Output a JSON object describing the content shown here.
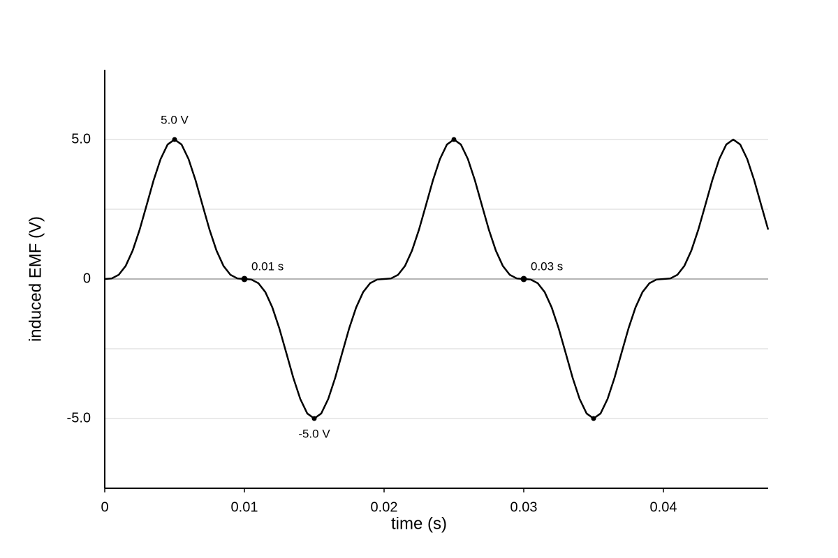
{
  "chart_data": {
    "type": "line",
    "x_label": "time (s)",
    "y_label": "induced EMF (V)",
    "x": [
      0,
      0.0005,
      0.001,
      0.0015,
      0.002,
      0.0025,
      0.003,
      0.0035,
      0.004,
      0.0045,
      0.005,
      0.0055,
      0.006,
      0.0065,
      0.007,
      0.0075,
      0.008,
      0.0085,
      0.009,
      0.0095,
      0.01,
      0.0105,
      0.011,
      0.0115,
      0.012,
      0.0125,
      0.013,
      0.0135,
      0.014,
      0.0145,
      0.015,
      0.0155,
      0.016,
      0.0165,
      0.017,
      0.0175,
      0.018,
      0.0185,
      0.019,
      0.0195,
      0.02,
      0.0205,
      0.021,
      0.0215,
      0.022,
      0.0225,
      0.023,
      0.0235,
      0.024,
      0.0245,
      0.025,
      0.0255,
      0.026,
      0.0265,
      0.027,
      0.0275,
      0.028,
      0.0285,
      0.029,
      0.0295,
      0.03,
      0.0305,
      0.031,
      0.0315,
      0.032,
      0.0325,
      0.033,
      0.0335,
      0.034,
      0.0345,
      0.035,
      0.0355,
      0.036,
      0.0365,
      0.037,
      0.0375,
      0.038,
      0.0385,
      0.039,
      0.0395,
      0.04,
      0.0405,
      0.041,
      0.0415,
      0.042,
      0.0425,
      0.043,
      0.0435,
      0.044,
      0.0445,
      0.045,
      0.0455,
      0.046,
      0.0465,
      0.047,
      0.0475
    ],
    "series": [
      {
        "color": "#000000",
        "values": [
          0,
          0.02,
          0.15,
          0.47,
          1.02,
          1.77,
          2.65,
          3.54,
          4.3,
          4.82,
          5,
          4.82,
          4.3,
          3.54,
          2.65,
          1.77,
          1.02,
          0.47,
          0.15,
          0.02,
          0,
          -0.02,
          -0.15,
          -0.47,
          -1.02,
          -1.77,
          -2.65,
          -3.54,
          -4.3,
          -4.82,
          -5,
          -4.82,
          -4.3,
          -3.54,
          -2.65,
          -1.77,
          -1.02,
          -0.47,
          -0.15,
          -0.02,
          0,
          0.02,
          0.15,
          0.47,
          1.02,
          1.77,
          2.65,
          3.54,
          4.3,
          4.82,
          5,
          4.82,
          4.3,
          3.54,
          2.65,
          1.77,
          1.02,
          0.47,
          0.15,
          0.02,
          0,
          -0.02,
          -0.15,
          -0.47,
          -1.02,
          -1.77,
          -2.65,
          -3.54,
          -4.3,
          -4.82,
          -5,
          -4.82,
          -4.3,
          -3.54,
          -2.65,
          -1.77,
          -1.02,
          -0.47,
          -0.15,
          -0.02,
          0,
          0.02,
          0.15,
          0.47,
          1.02,
          1.77,
          2.65,
          3.54,
          4.3,
          4.82,
          5,
          4.82,
          4.3,
          3.54,
          2.65,
          1.77
        ]
      }
    ],
    "markers": [
      {
        "x": 0.005,
        "y": 5,
        "label": "5.0 V"
      },
      {
        "x": 0.01,
        "y": 0,
        "label": "0.01 s"
      },
      {
        "x": 0.015,
        "y": -5,
        "label": "-5.0 V"
      },
      {
        "x": 0.025,
        "y": 5
      },
      {
        "x": 0.03,
        "y": 0,
        "label": "0.03 s"
      },
      {
        "x": 0.035,
        "y": -5
      }
    ],
    "xlim": [
      0,
      0.0475
    ],
    "xticks": [
      0,
      0.01,
      0.02,
      0.03,
      0.04
    ],
    "ylim": [
      -7.5,
      7.5
    ],
    "yticks": [
      {
        "value": -5,
        "label": "-5.0"
      },
      0,
      {
        "value": 5,
        "label": "5.0"
      }
    ],
    "grid": true
  }
}
